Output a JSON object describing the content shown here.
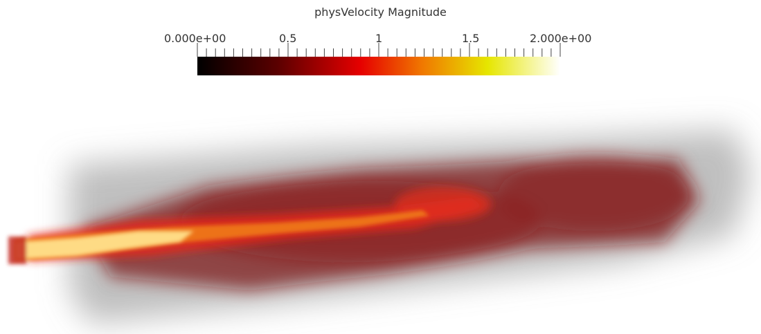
{
  "colorbar": {
    "title": "physVelocity Magnitude",
    "min_label": "0.000e+00",
    "max_label": "2.000e+00",
    "tick_labels": [
      "0.5",
      "1",
      "1.5"
    ],
    "range": [
      0,
      2
    ],
    "colormap_stops": [
      "#000000",
      "#5a0000",
      "#e60000",
      "#f07800",
      "#e6e600",
      "#ffffff"
    ]
  },
  "scene": {
    "description_color_smoke": "#8a8a8a",
    "core_color": "#ffe08a",
    "hot_color": "#e8241a",
    "mid_color": "#9a1818"
  }
}
